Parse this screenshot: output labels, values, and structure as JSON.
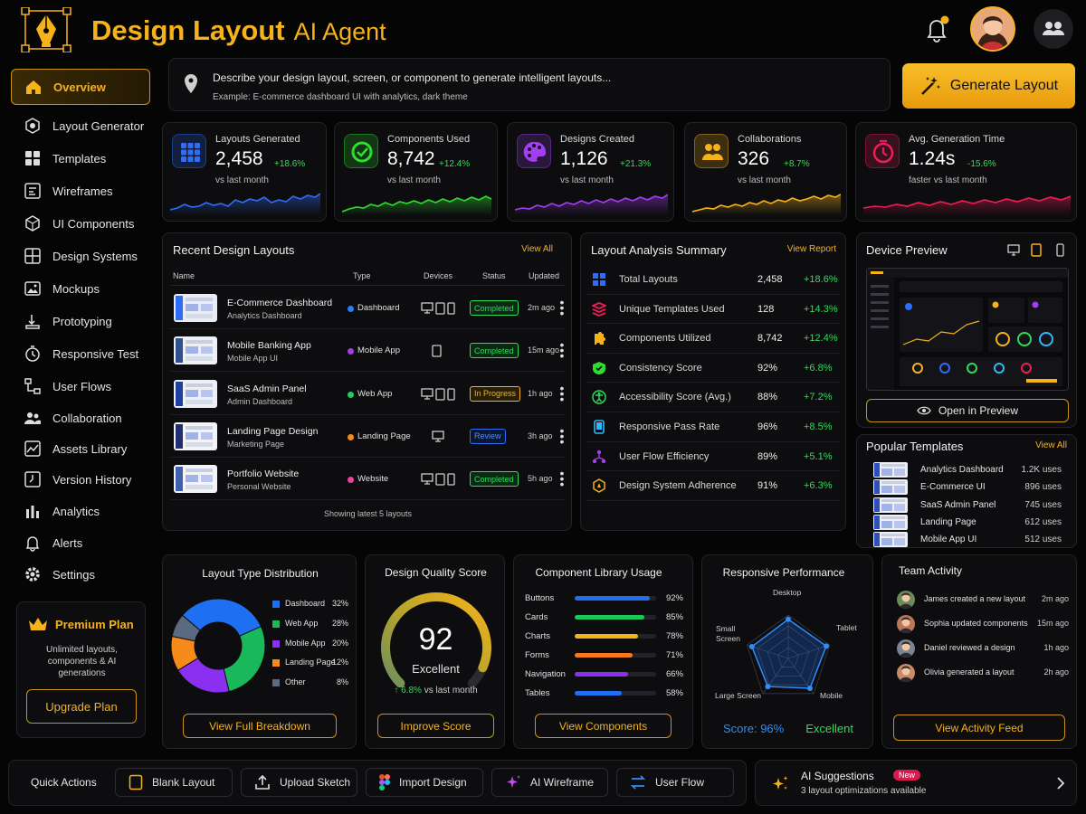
{
  "header": {
    "title_bold": "Design Layout",
    "title_light": "AI Agent"
  },
  "sidebar": {
    "items": [
      {
        "label": "Overview"
      },
      {
        "label": "Layout Generator"
      },
      {
        "label": "Templates"
      },
      {
        "label": "Wireframes"
      },
      {
        "label": "UI Components"
      },
      {
        "label": "Design Systems"
      },
      {
        "label": "Mockups"
      },
      {
        "label": "Prototyping"
      },
      {
        "label": "Responsive Test"
      },
      {
        "label": "User Flows"
      },
      {
        "label": "Collaboration"
      },
      {
        "label": "Assets Library"
      },
      {
        "label": "Version History"
      },
      {
        "label": "Analytics"
      },
      {
        "label": "Alerts"
      },
      {
        "label": "Settings"
      }
    ],
    "premium": {
      "title": "Premium Plan",
      "line1": "Unlimited layouts,",
      "line2": "components & AI",
      "line3": "generations",
      "button": "Upgrade Plan"
    }
  },
  "prompt": {
    "placeholder": "Describe your design layout, screen, or component to generate intelligent layouts...",
    "example": "Example: E-commerce dashboard UI with analytics, dark theme",
    "button": "Generate Layout"
  },
  "stats": [
    {
      "title": "Layouts Generated",
      "value": "2,458",
      "change": "+18.6%",
      "sub": "vs last month",
      "color": "#2f6df6"
    },
    {
      "title": "Components Used",
      "value": "8,742",
      "change": "+12.4%",
      "sub": "vs last month",
      "color": "#2fdc2f"
    },
    {
      "title": "Designs Created",
      "value": "1,126",
      "change": "+21.3%",
      "sub": "vs last month",
      "color": "#a23ff0"
    },
    {
      "title": "Collaborations",
      "value": "326",
      "change": "+8.7%",
      "sub": "vs last month",
      "color": "#f6b21b"
    },
    {
      "title": "Avg. Generation Time",
      "value": "1.24s",
      "change": "-15.6%",
      "sub": "faster vs last month",
      "color": "#ec1e54"
    }
  ],
  "recent": {
    "title": "Recent Design Layouts",
    "view_all": "View All",
    "headers": {
      "name": "Name",
      "type": "Type",
      "devices": "Devices",
      "status": "Status",
      "updated": "Updated"
    },
    "rows": [
      {
        "name": "E-Commerce Dashboard",
        "sub": "Analytics Dashboard",
        "type": "Dashboard",
        "dot": "#2f7df6",
        "status": "Completed",
        "updated": "2m ago",
        "devices": 3
      },
      {
        "name": "Mobile Banking App",
        "sub": "Mobile App UI",
        "type": "Mobile App",
        "dot": "#a23ff0",
        "status": "Completed",
        "updated": "15m ago",
        "devices": 1
      },
      {
        "name": "SaaS Admin Panel",
        "sub": "Admin Dashboard",
        "type": "Web App",
        "dot": "#1fcf5f",
        "status": "In Progress",
        "updated": "1h ago",
        "devices": 3
      },
      {
        "name": "Landing Page Design",
        "sub": "Marketing Page",
        "type": "Landing Page",
        "dot": "#f68a1b",
        "status": "Review",
        "updated": "3h ago",
        "devices": 1
      },
      {
        "name": "Portfolio Website",
        "sub": "Personal Website",
        "type": "Website",
        "dot": "#f03fa0",
        "status": "Completed",
        "updated": "5h ago",
        "devices": 3
      }
    ],
    "footer": "Showing latest 5 layouts"
  },
  "analysis": {
    "title": "Layout Analysis Summary",
    "view": "View Report",
    "rows": [
      {
        "label": "Total Layouts",
        "value": "2,458",
        "change": "+18.6%",
        "color": "#2f6df6"
      },
      {
        "label": "Unique Templates Used",
        "value": "128",
        "change": "+14.3%",
        "color": "#ec1e54"
      },
      {
        "label": "Components Utilized",
        "value": "8,742",
        "change": "+12.4%",
        "color": "#f6b21b"
      },
      {
        "label": "Consistency Score",
        "value": "92%",
        "change": "+6.8%",
        "color": "#2fdc2f"
      },
      {
        "label": "Accessibility Score (Avg.)",
        "value": "88%",
        "change": "+7.2%",
        "color": "#2fdc5a"
      },
      {
        "label": "Responsive Pass Rate",
        "value": "96%",
        "change": "+8.5%",
        "color": "#2fb8f6"
      },
      {
        "label": "User Flow Efficiency",
        "value": "89%",
        "change": "+5.1%",
        "color": "#a23ff0"
      },
      {
        "label": "Design System Adherence",
        "value": "91%",
        "change": "+6.3%",
        "color": "#f6b21b"
      }
    ]
  },
  "device_preview": {
    "title": "Device Preview",
    "button": "Open in Preview"
  },
  "popular": {
    "title": "Popular Templates",
    "view_all": "View All",
    "items": [
      {
        "name": "Analytics Dashboard",
        "uses": "1.2K uses"
      },
      {
        "name": "E-Commerce UI",
        "uses": "896 uses"
      },
      {
        "name": "SaaS Admin Panel",
        "uses": "745 uses"
      },
      {
        "name": "Landing Page",
        "uses": "612 uses"
      },
      {
        "name": "Mobile App UI",
        "uses": "512 uses"
      }
    ]
  },
  "distribution": {
    "title": "Layout Type Distribution",
    "button": "View Full Breakdown",
    "items": [
      {
        "label": "Dashboard",
        "pct": "32%",
        "value": 32,
        "color": "#1f6ff2"
      },
      {
        "label": "Web App",
        "pct": "28%",
        "value": 28,
        "color": "#19b85a"
      },
      {
        "label": "Mobile App",
        "pct": "20%",
        "value": 20,
        "color": "#8b2ff0"
      },
      {
        "label": "Landing Page",
        "pct": "12%",
        "value": 12,
        "color": "#f68a1b"
      },
      {
        "label": "Other",
        "pct": "8%",
        "value": 8,
        "color": "#5a6a80"
      }
    ]
  },
  "quality": {
    "title": "Design Quality Score",
    "score": "92",
    "score_value": 92,
    "label": "Excellent",
    "change": "6.8%",
    "change_sub": "vs last month",
    "button": "Improve Score"
  },
  "library": {
    "title": "Component Library Usage",
    "button": "View Components",
    "items": [
      {
        "label": "Buttons",
        "pct": "92%",
        "value": 92,
        "color": "#1f6ff2"
      },
      {
        "label": "Cards",
        "pct": "85%",
        "value": 85,
        "color": "#19c85a"
      },
      {
        "label": "Charts",
        "pct": "78%",
        "value": 78,
        "color": "#f6b21b"
      },
      {
        "label": "Forms",
        "pct": "71%",
        "value": 71,
        "color": "#f67a1b"
      },
      {
        "label": "Navigation",
        "pct": "66%",
        "value": 66,
        "color": "#8b2ff0"
      },
      {
        "label": "Tables",
        "pct": "58%",
        "value": 58,
        "color": "#1f6ff2"
      }
    ]
  },
  "responsive": {
    "title": "Responsive Performance",
    "axes": [
      "Desktop",
      "Tablet",
      "Mobile",
      "Large Screen",
      "Small Screen"
    ],
    "values": [
      0.9,
      0.92,
      0.85,
      0.8,
      0.88
    ],
    "score": "Score: 96%",
    "grade": "Excellent"
  },
  "team": {
    "title": "Team Activity",
    "button": "View Activity Feed",
    "items": [
      {
        "text": "James created a new layout",
        "time": "2m ago",
        "color": "#6b8a5a"
      },
      {
        "text": "Sophia updated components",
        "time": "15m ago",
        "color": "#b9785a"
      },
      {
        "text": "Daniel reviewed a design",
        "time": "1h ago",
        "color": "#7a8494"
      },
      {
        "text": "Olivia generated a layout",
        "time": "2h ago",
        "color": "#c98a6a"
      }
    ]
  },
  "quick": {
    "title": "Quick Actions",
    "items": [
      {
        "label": "Blank Layout"
      },
      {
        "label": "Upload Sketch"
      },
      {
        "label": "Import Design"
      },
      {
        "label": "AI Wireframe"
      },
      {
        "label": "User Flow"
      }
    ]
  },
  "suggestions": {
    "title": "AI Suggestions",
    "badge": "New",
    "sub": "3 layout optimizations available"
  }
}
